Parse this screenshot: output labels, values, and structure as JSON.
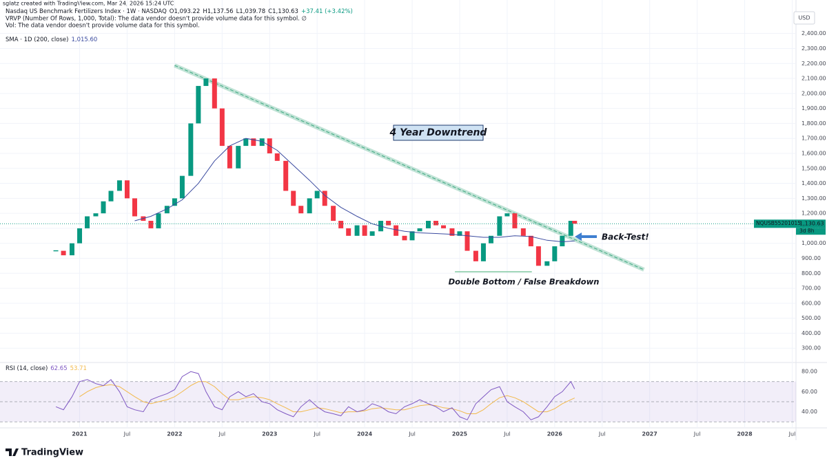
{
  "header": {
    "author": "sglatz created with TradingView.com, Mar 24, 2026 15:24 UTC",
    "brand": "TradingView"
  },
  "chart_data": [
    {
      "type": "candlestick",
      "title": "Nasdaq US Benchmark Fertilizers Index · 1W · NASDAQ",
      "ohlc_labels": [
        "O1,093.22",
        "H1,137.56",
        "L1,039.78",
        "C1,130.63",
        "+37.41 (+3.42%)"
      ],
      "legend_lines": [
        "VRVP (Number Of Rows, 1,000, Total): The data vendor doesn't provide volume data for this symbol.  ∅",
        "Vol: The data vendor doesn't provide volume data for this symbol."
      ],
      "currency": "USD",
      "up_color": "#089981",
      "down_color": "#f23645",
      "x": [
        2020.75,
        2020.83,
        2020.92,
        2021.0,
        2021.08,
        2021.17,
        2021.25,
        2021.33,
        2021.42,
        2021.5,
        2021.58,
        2021.67,
        2021.75,
        2021.83,
        2021.92,
        2022.0,
        2022.08,
        2022.17,
        2022.25,
        2022.33,
        2022.42,
        2022.5,
        2022.58,
        2022.67,
        2022.75,
        2022.83,
        2022.92,
        2023.0,
        2023.08,
        2023.17,
        2023.25,
        2023.33,
        2023.42,
        2023.5,
        2023.58,
        2023.67,
        2023.75,
        2023.83,
        2023.92,
        2024.0,
        2024.08,
        2024.17,
        2024.25,
        2024.33,
        2024.42,
        2024.5,
        2024.58,
        2024.67,
        2024.75,
        2024.83,
        2024.92,
        2025.0,
        2025.08,
        2025.17,
        2025.25,
        2025.33,
        2025.42,
        2025.5,
        2025.58,
        2025.67,
        2025.75,
        2025.83,
        2025.92,
        2026.0,
        2026.08,
        2026.17,
        2026.21
      ],
      "close": [
        950,
        920,
        1000,
        1100,
        1180,
        1200,
        1280,
        1350,
        1420,
        1300,
        1180,
        1150,
        1100,
        1200,
        1250,
        1300,
        1450,
        1800,
        2050,
        2100,
        1900,
        1650,
        1500,
        1650,
        1700,
        1650,
        1700,
        1600,
        1550,
        1350,
        1250,
        1200,
        1300,
        1350,
        1250,
        1150,
        1100,
        1050,
        1120,
        1050,
        1080,
        1150,
        1120,
        1050,
        1020,
        1080,
        1100,
        1150,
        1120,
        1100,
        1050,
        1080,
        950,
        880,
        1000,
        1050,
        1180,
        1200,
        1100,
        1050,
        980,
        850,
        880,
        980,
        1050,
        1150,
        1130.63
      ],
      "sma": {
        "name": "SMA · 1D (200, close)",
        "last_label": "1,015.60",
        "color": "#3a4a9f",
        "x": [
          2021.58,
          2021.75,
          2021.92,
          2022.08,
          2022.25,
          2022.42,
          2022.58,
          2022.75,
          2022.92,
          2023.08,
          2023.25,
          2023.42,
          2023.58,
          2023.75,
          2023.92,
          2024.08,
          2024.25,
          2024.42,
          2024.58,
          2024.75,
          2024.92,
          2025.08,
          2025.25,
          2025.42,
          2025.58,
          2025.75,
          2025.92,
          2026.08,
          2026.21
        ],
        "values": [
          1150,
          1180,
          1230,
          1290,
          1400,
          1550,
          1650,
          1700,
          1680,
          1620,
          1520,
          1420,
          1320,
          1240,
          1180,
          1130,
          1100,
          1080,
          1070,
          1065,
          1060,
          1050,
          1040,
          1040,
          1050,
          1045,
          1020,
          1010,
          1015.6
        ]
      },
      "last_price": {
        "symbol": "NQUSB55201015",
        "label": "1,130.63",
        "countdown": "3d 8h",
        "color": "#089981"
      },
      "trendlines": [
        {
          "x": [
            2022.0,
            2026.94
          ],
          "values": [
            2187,
            824
          ],
          "color": "#4caf8a"
        },
        {
          "x": [
            2024.95,
            2025.76
          ],
          "values": [
            810,
            810
          ],
          "color": "#7fc8a0"
        }
      ],
      "annotations": [
        "4 Year Downtrend",
        "Back-Test!",
        "Double Bottom / False Breakdown"
      ],
      "xlim": [
        2020.22,
        2028.54
      ],
      "xticks": [
        2021,
        {
          "value": 2021.5,
          "label": "Jul"
        },
        2022,
        {
          "value": 2022.5,
          "label": "Jul"
        },
        2023,
        {
          "value": 2023.5,
          "label": "Jul"
        },
        2024,
        {
          "value": 2024.5,
          "label": "Jul"
        },
        2025,
        {
          "value": 2025.5,
          "label": "Jul"
        },
        2026,
        {
          "value": 2026.5,
          "label": "Jul"
        },
        2027,
        {
          "value": 2027.5,
          "label": "Jul"
        },
        2028,
        {
          "value": 2028.5,
          "label": "Jul"
        }
      ],
      "ylim": [
        200,
        2550
      ],
      "yticks": [
        {
          "value": 300,
          "label": "300.00"
        },
        {
          "value": 400,
          "label": "400.00"
        },
        {
          "value": 500,
          "label": "500.00"
        },
        {
          "value": 600,
          "label": "600.00"
        },
        {
          "value": 700,
          "label": "700.00"
        },
        {
          "value": 800,
          "label": "800.00"
        },
        {
          "value": 900,
          "label": "900.00"
        },
        {
          "value": 1000,
          "label": "1,000.00"
        },
        {
          "value": 1100,
          "label": "1,100.00"
        },
        {
          "value": 1200,
          "label": "1,200.00"
        },
        {
          "value": 1300,
          "label": "1,300.00"
        },
        {
          "value": 1400,
          "label": "1,400.00"
        },
        {
          "value": 1500,
          "label": "1,500.00"
        },
        {
          "value": 1600,
          "label": "1,600.00"
        },
        {
          "value": 1700,
          "label": "1,700.00"
        },
        {
          "value": 1800,
          "label": "1,800.00"
        },
        {
          "value": 1900,
          "label": "1,900.00"
        },
        {
          "value": 2000,
          "label": "2,000.00"
        },
        {
          "value": 2100,
          "label": "2,100.00"
        },
        {
          "value": 2200,
          "label": "2,200.00"
        },
        {
          "value": 2300,
          "label": "2,300.00"
        },
        {
          "value": 2400,
          "label": "2,400.00"
        }
      ],
      "grid": true
    },
    {
      "type": "line",
      "title": "RSI (14, close)",
      "rsi": {
        "last_label": "62.65",
        "color": "#7e57c2",
        "values": [
          45,
          42,
          55,
          70,
          72,
          68,
          66,
          72,
          60,
          45,
          42,
          40,
          52,
          55,
          58,
          62,
          75,
          80,
          78,
          60,
          45,
          42,
          55,
          60,
          55,
          58,
          50,
          48,
          42,
          38,
          35,
          45,
          52,
          45,
          40,
          38,
          36,
          45,
          40,
          42,
          48,
          45,
          40,
          38,
          45,
          48,
          52,
          48,
          45,
          40,
          44,
          35,
          32,
          48,
          55,
          62,
          65,
          50,
          45,
          40,
          32,
          35,
          45,
          55,
          60,
          70,
          62.65
        ]
      },
      "rsi_ma": {
        "last_label": "53.71",
        "color": "#f2b94a",
        "values": [
          null,
          null,
          null,
          55,
          60,
          64,
          66,
          67,
          65,
          60,
          55,
          50,
          48,
          50,
          52,
          55,
          60,
          66,
          70,
          70,
          65,
          58,
          52,
          52,
          54,
          55,
          54,
          52,
          48,
          44,
          40,
          40,
          42,
          44,
          43,
          41,
          39,
          40,
          40,
          41,
          43,
          44,
          43,
          42,
          42,
          44,
          46,
          47,
          46,
          44,
          43,
          41,
          38,
          38,
          42,
          48,
          54,
          56,
          54,
          50,
          45,
          40,
          40,
          43,
          48,
          52,
          53.71
        ]
      },
      "band": [
        30,
        70
      ],
      "levels": [
        70,
        50,
        30
      ],
      "ylim": [
        24,
        89
      ],
      "yticks": [
        {
          "value": 40,
          "label": "40.00"
        },
        {
          "value": 60,
          "label": "60.00"
        },
        {
          "value": 80,
          "label": "80.00"
        }
      ]
    }
  ]
}
